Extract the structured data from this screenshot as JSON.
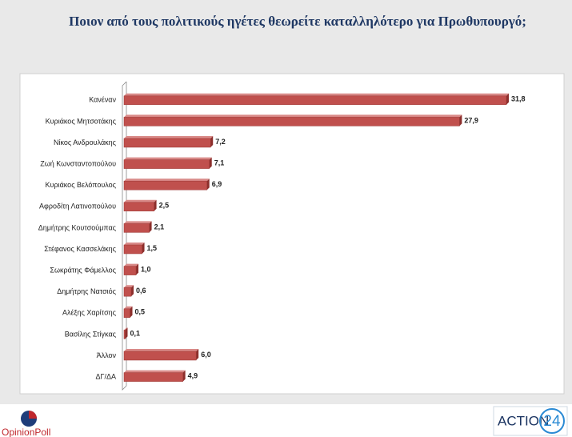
{
  "chart_data": {
    "type": "bar",
    "orientation": "horizontal",
    "title": "Ποιον από τους πολιτικούς ηγέτες θεωρείτε καταλληλότερο για Πρωθυπουργό;",
    "categories": [
      "Κανέναν",
      "Κυριάκος Μητσοτάκης",
      "Νίκος Ανδρουλάκης",
      "Ζωή Κωνσταντοπούλου",
      "Κυριάκος Βελόπουλος",
      "Αφροδίτη Λατινοπούλου",
      "Δημήτρης Κουτσούμπας",
      "Στέφανος Κασσελάκης",
      "Σωκράτης Φάμελλος",
      "Δημήτρης Νατσιός",
      "Αλέξης Χαρίτσης",
      "Βασίλης Στίγκας",
      "Άλλον",
      "ΔΓ/ΔΑ"
    ],
    "values": [
      31.8,
      27.9,
      7.2,
      7.1,
      6.9,
      2.5,
      2.1,
      1.5,
      1.0,
      0.6,
      0.5,
      0.1,
      6.0,
      4.9
    ],
    "value_labels": [
      "31,8",
      "27,9",
      "7,2",
      "7,1",
      "6,9",
      "2,5",
      "2,1",
      "1,5",
      "1,0",
      "0,6",
      "0,5",
      "0,1",
      "6,0",
      "4,9"
    ],
    "color": "#c0504d"
  },
  "branding": {
    "left": "OpinionPoll",
    "right_word": "ACTION",
    "right_number": "24"
  }
}
